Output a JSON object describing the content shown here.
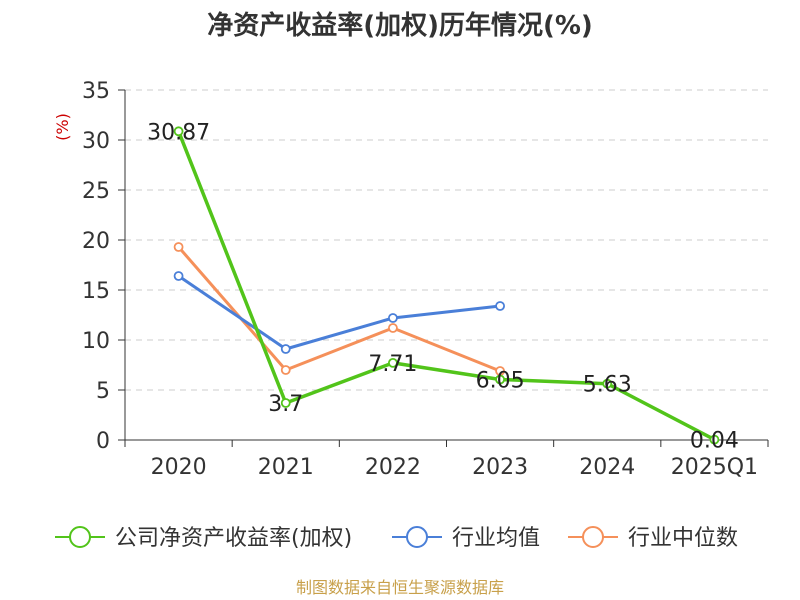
{
  "chart_data": {
    "type": "line",
    "title": "净资产收益率(加权)历年情况(%)",
    "ylabel": "(%)",
    "xlabel": "",
    "categories": [
      "2020",
      "2021",
      "2022",
      "2023",
      "2024",
      "2025Q1"
    ],
    "ylim": [
      0,
      35
    ],
    "yticks": [
      0,
      5,
      10,
      15,
      20,
      25,
      30,
      35
    ],
    "grid": true,
    "legend_position": "bottom",
    "series": [
      {
        "name": "公司净资产收益率(加权)",
        "color": "#52c41a",
        "values": [
          30.87,
          3.7,
          7.71,
          6.05,
          5.63,
          0.04
        ],
        "labels": [
          "30.87",
          "3.7",
          "7.71",
          "6.05",
          "5.63",
          "0.04"
        ]
      },
      {
        "name": "行业均值",
        "color": "#4a7fd8",
        "values": [
          16.4,
          9.1,
          12.2,
          13.4,
          null,
          null
        ]
      },
      {
        "name": "行业中位数",
        "color": "#f5905a",
        "values": [
          19.3,
          7.0,
          11.2,
          6.9,
          null,
          null
        ]
      }
    ]
  },
  "source": "制图数据来自恒生聚源数据库"
}
